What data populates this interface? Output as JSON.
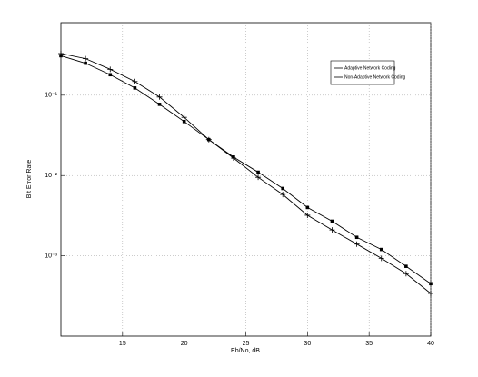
{
  "chart_data": {
    "type": "line",
    "log_y": true,
    "grid": true,
    "legend_position": "top-right",
    "x_label": "Eb/No, dB",
    "y_label": "Bit Error Rate",
    "x": [
      10,
      12,
      14,
      16,
      18,
      20,
      22,
      24,
      26,
      28,
      30,
      32,
      34,
      36,
      38,
      40
    ],
    "series": [
      {
        "name": "Adaptive Network Coding",
        "color": "#000000",
        "marker": "plus",
        "values": [
          0.33,
          0.285,
          0.21,
          0.148,
          0.095,
          0.053,
          0.028,
          0.0165,
          0.0095,
          0.0058,
          0.0032,
          0.0021,
          0.0014,
          0.00093,
          0.0006,
          0.00034
        ]
      },
      {
        "name": "Non-Adaptive Network Coding",
        "color": "#000000",
        "marker": "square",
        "values": [
          0.31,
          0.25,
          0.18,
          0.123,
          0.077,
          0.047,
          0.028,
          0.017,
          0.011,
          0.0069,
          0.004,
          0.0027,
          0.0017,
          0.0012,
          0.00074,
          0.00045
        ]
      }
    ],
    "xlim": [
      10,
      40
    ],
    "xticks": [
      15,
      20,
      25,
      30,
      35,
      40
    ],
    "ylim": [
      0.0001,
      0.8
    ],
    "yticks": [
      {
        "value": 0.1,
        "label": "10⁻¹"
      },
      {
        "value": 0.01,
        "label": "10⁻²"
      },
      {
        "value": 0.001,
        "label": "10⁻³"
      }
    ]
  }
}
